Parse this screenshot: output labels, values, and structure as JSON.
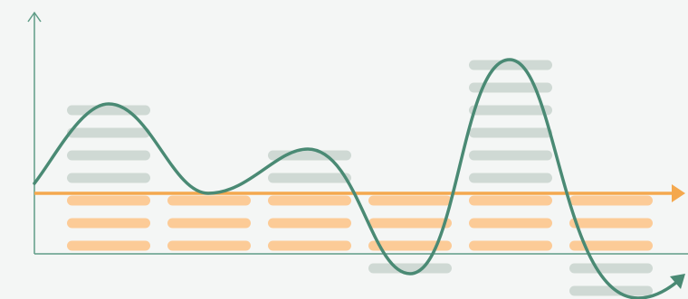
{
  "colors": {
    "background": "#f4f6f5",
    "axis": "#5e9c86",
    "curve": "#4a8a74",
    "baseline": "#f4a84e",
    "bar_positive": "#cfd9d4",
    "bar_negative": "#fccb97"
  },
  "icons": {
    "y_axis": "arrow-up-icon",
    "x_axis": "arrow-right-icon",
    "baseline": "arrow-right-icon",
    "curve": "arrow-right-icon"
  },
  "diagram": {
    "type": "stacked-dash-bars-with-wave",
    "columns": [
      {
        "index": 1,
        "grey_dashes_above": 4,
        "orange_dashes_below": 3,
        "grey_dashes_below": 0
      },
      {
        "index": 2,
        "grey_dashes_above": 0,
        "orange_dashes_below": 3,
        "grey_dashes_below": 0
      },
      {
        "index": 3,
        "grey_dashes_above": 2,
        "orange_dashes_below": 3,
        "grey_dashes_below": 0
      },
      {
        "index": 4,
        "grey_dashes_above": 0,
        "orange_dashes_below": 3,
        "grey_dashes_below": 1
      },
      {
        "index": 5,
        "grey_dashes_above": 6,
        "orange_dashes_below": 3,
        "grey_dashes_below": 0
      },
      {
        "index": 6,
        "grey_dashes_above": 0,
        "orange_dashes_below": 3,
        "grey_dashes_below": 2
      }
    ]
  }
}
